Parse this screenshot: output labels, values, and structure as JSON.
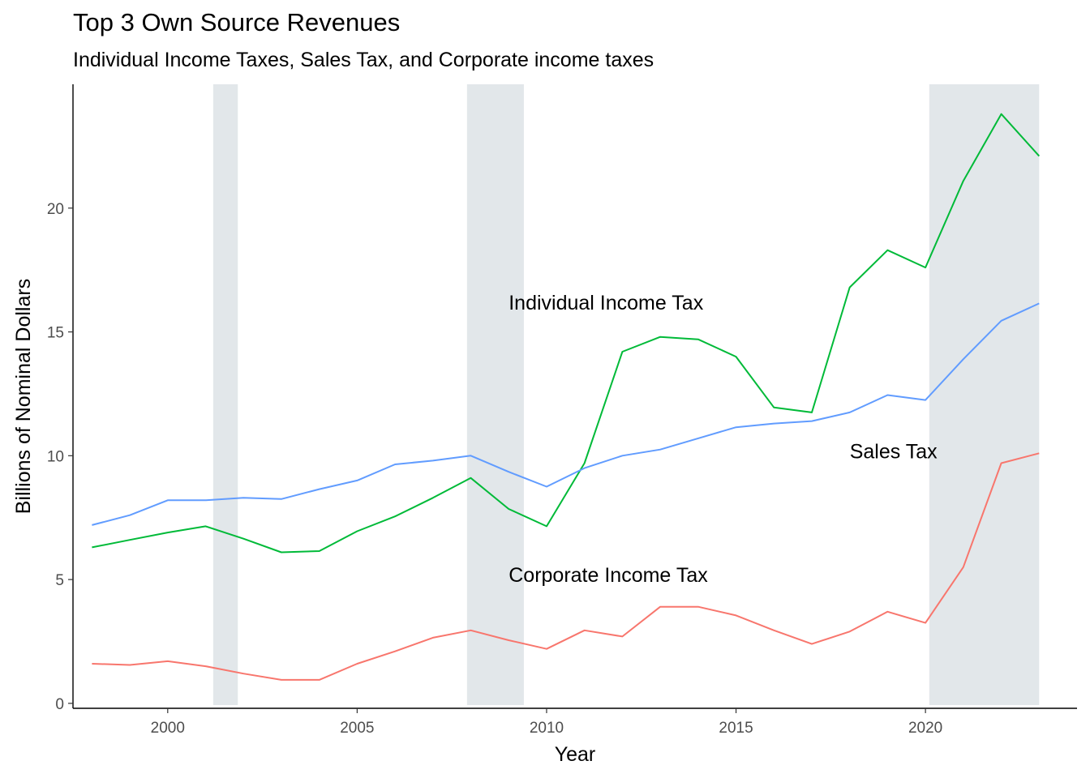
{
  "chart_data": {
    "type": "line",
    "title": "Top 3 Own Source Revenues",
    "subtitle": "Individual Income Taxes, Sales Tax, and Corporate income taxes",
    "xlabel": "Year",
    "ylabel": "Billions of Nominal Dollars",
    "xlim": [
      1997.5,
      2024.0
    ],
    "ylim": [
      -0.2,
      25.0
    ],
    "x_ticks": [
      2000,
      2005,
      2010,
      2015,
      2020
    ],
    "y_ticks": [
      0,
      5,
      10,
      15,
      20
    ],
    "grid": false,
    "legend": "none",
    "recession_bands": [
      {
        "start": 2001.2,
        "end": 2001.85
      },
      {
        "start": 2007.9,
        "end": 2009.4
      },
      {
        "start": 2020.1,
        "end": 2023.0
      }
    ],
    "band_color": "#e2e7ea",
    "x": [
      1998,
      1999,
      2000,
      2001,
      2002,
      2003,
      2004,
      2005,
      2006,
      2007,
      2008,
      2009,
      2010,
      2011,
      2012,
      2013,
      2014,
      2015,
      2016,
      2017,
      2018,
      2019,
      2020,
      2021,
      2022,
      2023
    ],
    "series": [
      {
        "key": "individual",
        "color": "#00ba38",
        "values": [
          6.3,
          6.6,
          6.9,
          7.15,
          6.65,
          6.1,
          6.15,
          6.95,
          7.55,
          8.3,
          9.1,
          7.85,
          7.15,
          9.7,
          14.2,
          14.8,
          14.7,
          14.0,
          11.95,
          11.75,
          16.8,
          18.3,
          17.6,
          21.1,
          23.8,
          22.1
        ]
      },
      {
        "key": "sales",
        "color": "#619cff",
        "values": [
          7.2,
          7.6,
          8.2,
          8.2,
          8.3,
          8.25,
          8.65,
          9.0,
          9.65,
          9.8,
          10.0,
          9.35,
          8.75,
          9.5,
          10.0,
          10.25,
          10.7,
          11.15,
          11.3,
          11.4,
          11.75,
          12.45,
          12.25,
          13.9,
          15.45,
          16.15
        ]
      },
      {
        "key": "corporate",
        "color": "#f8766d",
        "values": [
          1.6,
          1.55,
          1.7,
          1.5,
          1.2,
          0.95,
          0.95,
          1.6,
          2.1,
          2.65,
          2.95,
          2.55,
          2.2,
          2.95,
          2.7,
          3.9,
          3.9,
          3.55,
          2.95,
          2.4,
          2.9,
          3.7,
          3.25,
          5.5,
          9.7,
          10.1
        ]
      }
    ],
    "annotations": [
      {
        "text": "Individual Income Tax",
        "x": 2009.0,
        "y": 15.9
      },
      {
        "text": "Sales Tax",
        "x": 2018.0,
        "y": 9.9
      },
      {
        "text": "Corporate Income Tax",
        "x": 2009.0,
        "y": 4.9
      }
    ]
  }
}
